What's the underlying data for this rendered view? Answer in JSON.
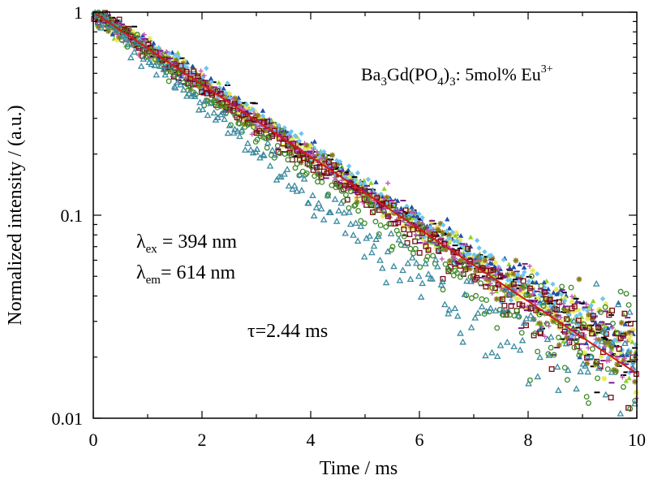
{
  "chart_data": {
    "type": "scatter",
    "title": "",
    "xlabel": "Time / ms",
    "ylabel": "Normalized intensity / (a.u.)",
    "xlim": [
      0,
      10
    ],
    "ylim": [
      0.01,
      1
    ],
    "yscale": "log",
    "grid": false,
    "x_ticks": [
      "0",
      "2",
      "4",
      "6",
      "8",
      "10"
    ],
    "y_ticks": [
      "0.01",
      "0.1",
      "1"
    ],
    "annotations": {
      "compound": {
        "base1": "Ba",
        "sub1": "3",
        "base2": "Gd(PO",
        "sub2": "4",
        "base3": ")",
        "sub3": "3",
        "base4": ": 5mol% Eu",
        "sup": "3+"
      },
      "lambda_ex": {
        "symbol": "λ",
        "sub": "ex",
        "text": " = 394 nm"
      },
      "lambda_em": {
        "symbol": "λ",
        "sub": "em",
        "text": "= 614 nm"
      },
      "tau": "τ=2.44 ms"
    },
    "fit": {
      "type": "single-exponential",
      "tau_ms": 2.44,
      "color": "#d11a1a"
    },
    "series": [
      {
        "marker": "triangle-filled",
        "color": "#8fd12a",
        "tau_ms": 2.44,
        "noise_floor": 0.004
      },
      {
        "marker": "triangle-filled",
        "color": "#1f4fa8",
        "tau_ms": 2.5,
        "noise_floor": 0.003
      },
      {
        "marker": "dash",
        "color": "#000000",
        "tau_ms": 2.45,
        "noise_floor": 0.003
      },
      {
        "marker": "star",
        "color": "#e8e85a",
        "tau_ms": 2.4,
        "noise_floor": 0.004
      },
      {
        "marker": "star",
        "color": "#8a7a1a",
        "tau_ms": 2.42,
        "noise_floor": 0.004
      },
      {
        "marker": "diamond-filled",
        "color": "#6ec6f0",
        "tau_ms": 2.5,
        "noise_floor": 0.003
      },
      {
        "marker": "dash",
        "color": "#7a1e8a",
        "tau_ms": 2.4,
        "noise_floor": 0.004
      },
      {
        "marker": "plus",
        "color": "#c05ab0",
        "tau_ms": 2.38,
        "noise_floor": 0.004
      },
      {
        "marker": "square-open",
        "color": "#7a0a14",
        "tau_ms": 2.3,
        "noise_floor": 0.006
      },
      {
        "marker": "circle-open",
        "color": "#3d8a2a",
        "tau_ms": 2.1,
        "noise_floor": 0.009
      },
      {
        "marker": "triangle-open",
        "color": "#3a8a9e",
        "tau_ms": 1.85,
        "noise_floor": 0.011
      }
    ]
  }
}
